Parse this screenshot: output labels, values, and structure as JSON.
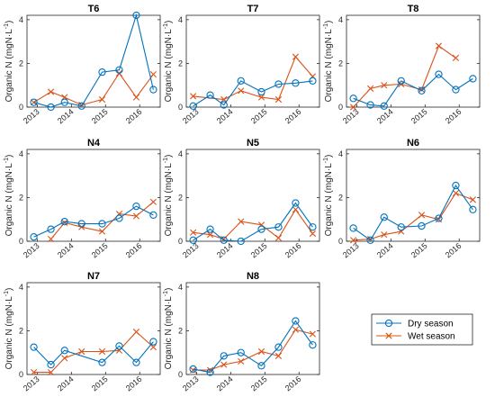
{
  "chart_data": {
    "type": "line",
    "ylabel": "Organic N (mgN·L",
    "ylabel_superscript": "-1",
    "ylabel_suffix": ")",
    "ylim": [
      0,
      4.2
    ],
    "yticks": [
      "0",
      "2",
      "4"
    ],
    "xtick_labels": [
      "2013",
      "2014",
      "2015",
      "2016"
    ],
    "grid": false,
    "legend_placement": "bottom-right",
    "colors": {
      "dry": "#0072BD",
      "wet": "#D95319"
    },
    "series_names": [
      "Dry season",
      "Wet season"
    ],
    "panels": [
      {
        "title": "T6",
        "dry": [
          [
            2012.9,
            0.22
          ],
          [
            2013.4,
            0.0
          ],
          [
            2013.8,
            0.22
          ],
          [
            2014.3,
            0.05
          ],
          [
            2014.9,
            1.6
          ],
          [
            2015.4,
            1.7
          ],
          [
            2015.9,
            4.2
          ],
          [
            2016.4,
            0.8
          ]
        ],
        "wet": [
          [
            2012.9,
            0.22
          ],
          [
            2013.4,
            0.7
          ],
          [
            2013.8,
            0.45
          ],
          [
            2014.3,
            0.1
          ],
          [
            2014.9,
            0.35
          ],
          [
            2015.4,
            1.55
          ],
          [
            2015.9,
            0.45
          ],
          [
            2016.4,
            1.5
          ]
        ]
      },
      {
        "title": "T7",
        "dry": [
          [
            2012.9,
            0.05
          ],
          [
            2013.4,
            0.55
          ],
          [
            2013.8,
            0.1
          ],
          [
            2014.3,
            1.2
          ],
          [
            2014.9,
            0.7
          ],
          [
            2015.4,
            1.05
          ],
          [
            2015.9,
            1.1
          ],
          [
            2016.4,
            1.2
          ]
        ],
        "wet": [
          [
            2012.9,
            0.5
          ],
          [
            2013.8,
            0.35
          ],
          [
            2014.3,
            0.75
          ],
          [
            2014.9,
            0.45
          ],
          [
            2015.4,
            0.35
          ],
          [
            2015.9,
            2.3
          ],
          [
            2016.4,
            1.4
          ]
        ]
      },
      {
        "title": "T8",
        "dry": [
          [
            2012.9,
            0.4
          ],
          [
            2013.4,
            0.1
          ],
          [
            2013.8,
            0.05
          ],
          [
            2014.3,
            1.2
          ],
          [
            2014.9,
            0.75
          ],
          [
            2015.4,
            1.5
          ],
          [
            2015.9,
            0.8
          ],
          [
            2016.4,
            1.3
          ]
        ],
        "wet": [
          [
            2012.9,
            0.0
          ],
          [
            2013.4,
            0.85
          ],
          [
            2013.8,
            1.0
          ],
          [
            2014.3,
            1.05
          ],
          [
            2014.9,
            0.8
          ],
          [
            2015.4,
            2.8
          ],
          [
            2015.9,
            2.25
          ]
        ]
      },
      {
        "title": "N4",
        "dry": [
          [
            2012.9,
            0.2
          ],
          [
            2013.4,
            0.55
          ],
          [
            2013.8,
            0.9
          ],
          [
            2014.3,
            0.8
          ],
          [
            2014.9,
            0.8
          ],
          [
            2015.4,
            1.05
          ],
          [
            2015.9,
            1.6
          ],
          [
            2016.4,
            1.2
          ]
        ],
        "wet": [
          [
            2013.4,
            0.1
          ],
          [
            2013.8,
            0.85
          ],
          [
            2014.3,
            0.65
          ],
          [
            2014.9,
            0.45
          ],
          [
            2015.4,
            1.25
          ],
          [
            2015.9,
            1.15
          ],
          [
            2016.4,
            1.8
          ]
        ]
      },
      {
        "title": "N5",
        "dry": [
          [
            2012.9,
            0.05
          ],
          [
            2013.4,
            0.55
          ],
          [
            2013.8,
            0.05
          ],
          [
            2014.3,
            0.0
          ],
          [
            2014.9,
            0.55
          ],
          [
            2015.4,
            0.65
          ],
          [
            2015.9,
            1.75
          ],
          [
            2016.4,
            0.65
          ]
        ],
        "wet": [
          [
            2012.9,
            0.4
          ],
          [
            2013.4,
            0.3
          ],
          [
            2013.8,
            0.1
          ],
          [
            2014.3,
            0.9
          ],
          [
            2014.9,
            0.75
          ],
          [
            2015.4,
            0.15
          ],
          [
            2015.9,
            1.45
          ],
          [
            2016.4,
            0.35
          ]
        ]
      },
      {
        "title": "N6",
        "dry": [
          [
            2012.9,
            0.6
          ],
          [
            2013.4,
            0.05
          ],
          [
            2013.8,
            1.1
          ],
          [
            2014.3,
            0.65
          ],
          [
            2014.9,
            0.7
          ],
          [
            2015.4,
            1.05
          ],
          [
            2015.9,
            2.55
          ],
          [
            2016.4,
            1.45
          ]
        ],
        "wet": [
          [
            2012.9,
            0.05
          ],
          [
            2013.4,
            0.1
          ],
          [
            2013.8,
            0.3
          ],
          [
            2014.3,
            0.45
          ],
          [
            2014.9,
            1.2
          ],
          [
            2015.4,
            1.0
          ],
          [
            2015.9,
            2.2
          ],
          [
            2016.4,
            1.9
          ]
        ]
      },
      {
        "title": "N7",
        "dry": [
          [
            2012.9,
            1.25
          ],
          [
            2013.4,
            0.45
          ],
          [
            2013.8,
            1.1
          ],
          [
            2014.9,
            0.55
          ],
          [
            2015.4,
            1.3
          ],
          [
            2015.9,
            0.55
          ],
          [
            2016.4,
            1.5
          ]
        ],
        "wet": [
          [
            2012.9,
            0.1
          ],
          [
            2013.4,
            0.1
          ],
          [
            2013.8,
            0.75
          ],
          [
            2014.3,
            1.05
          ],
          [
            2014.9,
            1.05
          ],
          [
            2015.4,
            1.1
          ],
          [
            2015.9,
            1.95
          ],
          [
            2016.4,
            1.25
          ]
        ]
      },
      {
        "title": "N8",
        "dry": [
          [
            2012.9,
            0.25
          ],
          [
            2013.4,
            0.1
          ],
          [
            2013.8,
            0.85
          ],
          [
            2014.3,
            1.0
          ],
          [
            2014.9,
            0.4
          ],
          [
            2015.4,
            1.25
          ],
          [
            2015.9,
            2.45
          ],
          [
            2016.4,
            1.35
          ]
        ],
        "wet": [
          [
            2012.9,
            0.2
          ],
          [
            2013.4,
            0.2
          ],
          [
            2013.8,
            0.45
          ],
          [
            2014.3,
            0.6
          ],
          [
            2014.9,
            1.05
          ],
          [
            2015.4,
            0.85
          ],
          [
            2015.9,
            2.05
          ],
          [
            2016.4,
            1.85
          ]
        ]
      }
    ]
  }
}
